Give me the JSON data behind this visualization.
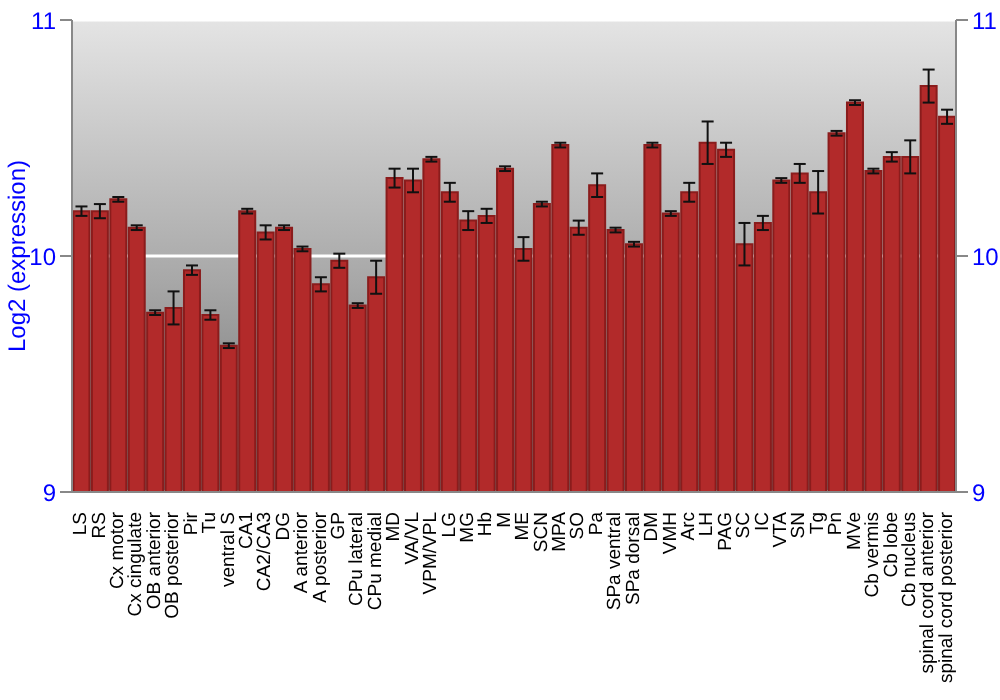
{
  "chart_data": {
    "type": "bar",
    "ylabel": "Log2 (expression)",
    "categories": [
      "LS",
      "RS",
      "Cx motor",
      "Cx cingulate",
      "OB anterior",
      "OB posterior",
      "Pir",
      "Tu",
      "ventral S",
      "CA1",
      "CA2/CA3",
      "DG",
      "A anterior",
      "A posterior",
      "GP",
      "CPu lateral",
      "CPu medial",
      "MD",
      "VA/VL",
      "VPM/VPL",
      "LG",
      "MG",
      "Hb",
      "M",
      "ME",
      "SCN",
      "MPA",
      "SO",
      "Pa",
      "SPa ventral",
      "SPa dorsal",
      "DM",
      "VMH",
      "Arc",
      "LH",
      "PAG",
      "SC",
      "IC",
      "VTA",
      "SN",
      "Tg",
      "Pn",
      "MVe",
      "Cb vermis",
      "Cb lobe",
      "Cb nucleus",
      "spinal cord anterior",
      "spinal cord posterior"
    ],
    "values": [
      10.19,
      10.19,
      10.24,
      10.12,
      9.76,
      9.78,
      9.94,
      9.75,
      9.62,
      10.19,
      10.1,
      10.12,
      10.03,
      9.88,
      9.98,
      9.79,
      9.91,
      10.33,
      10.32,
      10.41,
      10.27,
      10.15,
      10.17,
      10.37,
      10.03,
      10.22,
      10.47,
      10.12,
      10.3,
      10.11,
      10.05,
      10.47,
      10.18,
      10.27,
      10.48,
      10.45,
      10.05,
      10.14,
      10.32,
      10.35,
      10.27,
      10.52,
      10.65,
      10.36,
      10.42,
      10.42,
      10.72,
      10.59
    ],
    "errors": [
      0.02,
      0.03,
      0.01,
      0.01,
      0.01,
      0.07,
      0.02,
      0.02,
      0.01,
      0.01,
      0.03,
      0.01,
      0.01,
      0.03,
      0.03,
      0.01,
      0.07,
      0.04,
      0.05,
      0.01,
      0.04,
      0.04,
      0.03,
      0.01,
      0.05,
      0.01,
      0.01,
      0.03,
      0.05,
      0.01,
      0.01,
      0.01,
      0.01,
      0.04,
      0.09,
      0.03,
      0.09,
      0.03,
      0.01,
      0.04,
      0.09,
      0.01,
      0.01,
      0.01,
      0.02,
      0.07,
      0.07,
      0.03
    ],
    "color": "#b22a2a",
    "ylim": [
      9,
      11
    ],
    "yticks": [
      9,
      10,
      11
    ],
    "y2lim": [
      9,
      11
    ],
    "y2ticks": [
      9,
      10,
      11
    ],
    "grid": "y"
  }
}
